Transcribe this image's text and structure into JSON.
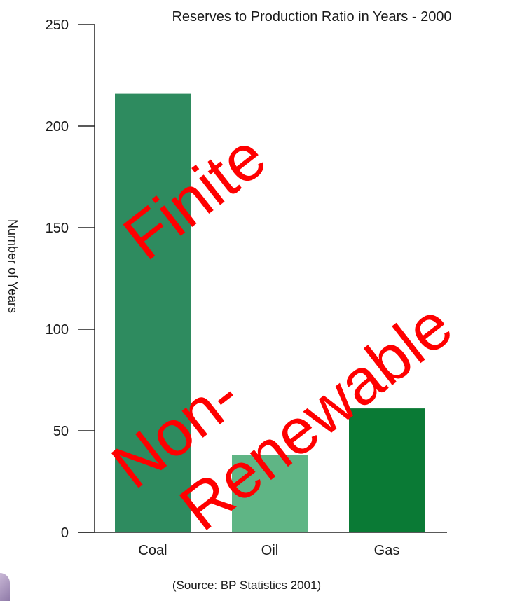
{
  "chart_data": {
    "type": "bar",
    "title": "Reserves to Production Ratio in Years - 2000",
    "xlabel": "",
    "ylabel": "Number of Years",
    "categories": [
      "Coal",
      "Oil",
      "Gas"
    ],
    "values": [
      216,
      38,
      61
    ],
    "bar_colors": [
      "#2e8b5f",
      "#5fb585",
      "#0a7a35"
    ],
    "ylim": [
      0,
      250
    ],
    "yticks": [
      "0",
      "50",
      "100",
      "150",
      "200",
      "250"
    ],
    "grid": false,
    "source": "(Source: BP Statistics 2001)"
  },
  "overlay": {
    "color": "#ff0000",
    "finite": "Finite",
    "non": "Non-",
    "renewable": "Renewable"
  }
}
